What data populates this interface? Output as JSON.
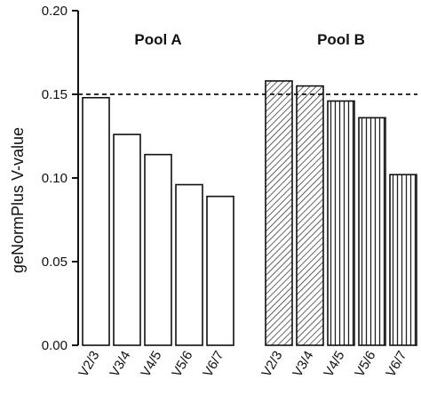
{
  "chart_data": {
    "type": "bar",
    "title": "",
    "xlabel": "",
    "ylabel": "geNormPlus V-value",
    "ylim": [
      0,
      0.2
    ],
    "yticks": [
      "0.00",
      "0.05",
      "0.10",
      "0.15",
      "0.20"
    ],
    "grid": false,
    "threshold": 0.15,
    "groups": [
      {
        "name": "Pool A",
        "pattern": "none",
        "categories": [
          "V2/3",
          "V3/4",
          "V4/5",
          "V5/6",
          "V6/7"
        ],
        "values": [
          0.148,
          0.126,
          0.114,
          0.096,
          0.089
        ]
      },
      {
        "name": "Pool B",
        "pattern": "mixed",
        "categories": [
          "V2/3",
          "V3/4",
          "V4/5",
          "V5/6",
          "V6/7"
        ],
        "values": [
          0.158,
          0.155,
          0.146,
          0.136,
          0.102
        ],
        "bar_patterns": [
          "diagonal",
          "diagonal",
          "vertical",
          "vertical",
          "vertical"
        ]
      }
    ]
  }
}
